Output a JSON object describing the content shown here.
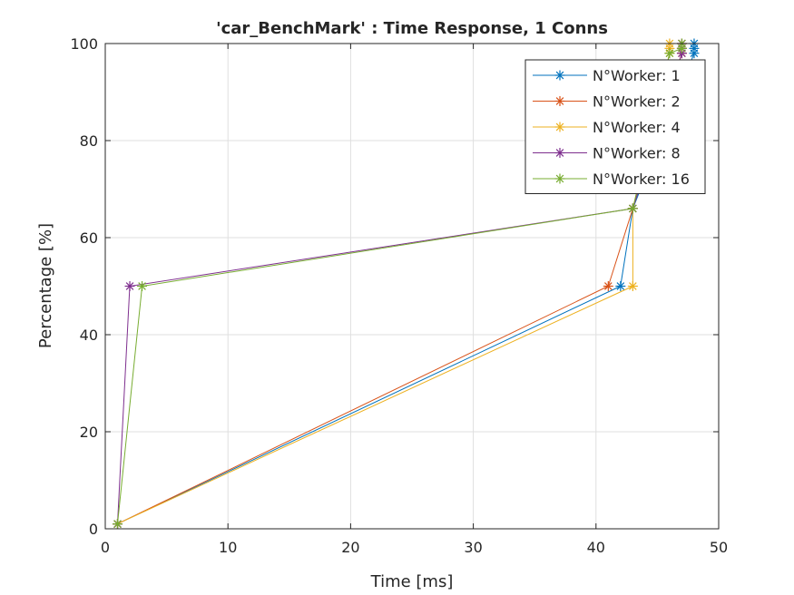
{
  "chart_data": {
    "type": "line",
    "title": "'car_BenchMark' : Time Response, 1 Conns",
    "xlabel": "Time [ms]",
    "ylabel": "Percentage [%]",
    "xlim": [
      0,
      50
    ],
    "ylim": [
      0,
      100
    ],
    "xticks": [
      0,
      10,
      20,
      30,
      40,
      50
    ],
    "yticks": [
      0,
      20,
      40,
      60,
      80,
      100
    ],
    "grid": true,
    "legend_position": "top-right",
    "marker": "asterisk",
    "series": [
      {
        "name": "N°Worker: 1",
        "color": "#0072BD",
        "x": [
          1,
          42,
          43,
          48,
          48,
          48
        ],
        "y": [
          1,
          50,
          66,
          98,
          99,
          100
        ]
      },
      {
        "name": "N°Worker: 2",
        "color": "#D95319",
        "x": [
          1,
          41,
          43,
          47,
          47,
          47
        ],
        "y": [
          1,
          50,
          66,
          98,
          99,
          100
        ]
      },
      {
        "name": "N°Worker: 4",
        "color": "#EDB120",
        "x": [
          1,
          43,
          43,
          46,
          46,
          46
        ],
        "y": [
          1,
          50,
          66,
          98,
          99,
          100
        ]
      },
      {
        "name": "N°Worker: 8",
        "color": "#7E2F8E",
        "x": [
          1,
          2,
          43,
          47,
          47,
          47
        ],
        "y": [
          1,
          50,
          66,
          98,
          99,
          100
        ]
      },
      {
        "name": "N°Worker: 16",
        "color": "#77AC30",
        "x": [
          1,
          3,
          43,
          46,
          47,
          47
        ],
        "y": [
          1,
          50,
          66,
          98,
          99,
          100
        ]
      }
    ]
  }
}
